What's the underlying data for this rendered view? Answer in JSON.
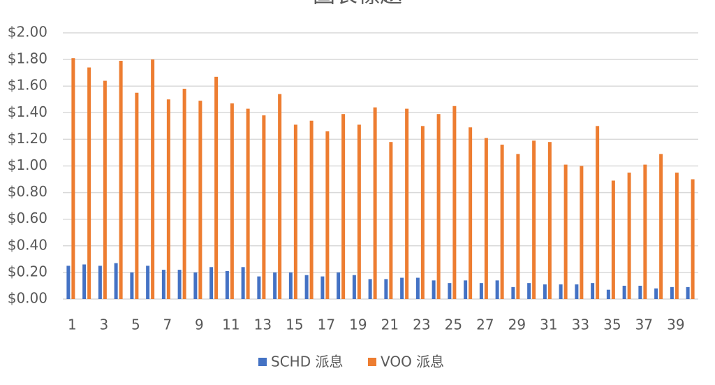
{
  "chart_data": {
    "type": "bar",
    "title": "圖表標題",
    "categories": [
      1,
      null,
      3,
      null,
      5,
      null,
      7,
      null,
      9,
      null,
      11,
      null,
      13,
      null,
      15,
      null,
      17,
      null,
      19,
      null,
      21,
      null,
      23,
      null,
      25,
      null,
      27,
      null,
      29,
      null,
      31,
      null,
      33,
      null,
      35,
      null,
      37,
      null,
      39,
      null
    ],
    "series": [
      {
        "name": "SCHD 派息",
        "color": "#4472c4",
        "values": [
          0.25,
          0.26,
          0.25,
          0.27,
          0.2,
          0.25,
          0.22,
          0.22,
          0.2,
          0.24,
          0.21,
          0.24,
          0.17,
          0.2,
          0.2,
          0.18,
          0.17,
          0.2,
          0.18,
          0.15,
          0.15,
          0.16,
          0.16,
          0.14,
          0.12,
          0.14,
          0.12,
          0.14,
          0.09,
          0.12,
          0.11,
          0.11,
          0.11,
          0.12,
          0.07,
          0.1,
          0.1,
          0.08,
          0.09,
          0.09
        ]
      },
      {
        "name": "VOO 派息",
        "color": "#ed7d31",
        "values": [
          1.81,
          1.74,
          1.64,
          1.79,
          1.55,
          1.8,
          1.5,
          1.58,
          1.49,
          1.67,
          1.47,
          1.43,
          1.38,
          1.54,
          1.31,
          1.34,
          1.26,
          1.39,
          1.31,
          1.44,
          1.18,
          1.43,
          1.3,
          1.39,
          1.45,
          1.29,
          1.21,
          1.16,
          1.09,
          1.19,
          1.18,
          1.01,
          1.0,
          1.3,
          0.89,
          0.95,
          1.01,
          1.09,
          0.95,
          0.9
        ]
      }
    ],
    "ylim": [
      0,
      2
    ],
    "yticks": [
      {
        "value": 0,
        "label": "$0.00"
      },
      {
        "value": 0.2,
        "label": "$0.20"
      },
      {
        "value": 0.4,
        "label": "$0.40"
      },
      {
        "value": 0.6,
        "label": "$0.60"
      },
      {
        "value": 0.8,
        "label": "$0.80"
      },
      {
        "value": 1.0,
        "label": "$1.00"
      },
      {
        "value": 1.2,
        "label": "$1.20"
      },
      {
        "value": 1.4,
        "label": "$1.40"
      },
      {
        "value": 1.6,
        "label": "$1.60"
      },
      {
        "value": 1.8,
        "label": "$1.80"
      },
      {
        "value": 2.0,
        "label": "$2.00"
      }
    ],
    "grid": true,
    "legend": "bottom"
  }
}
